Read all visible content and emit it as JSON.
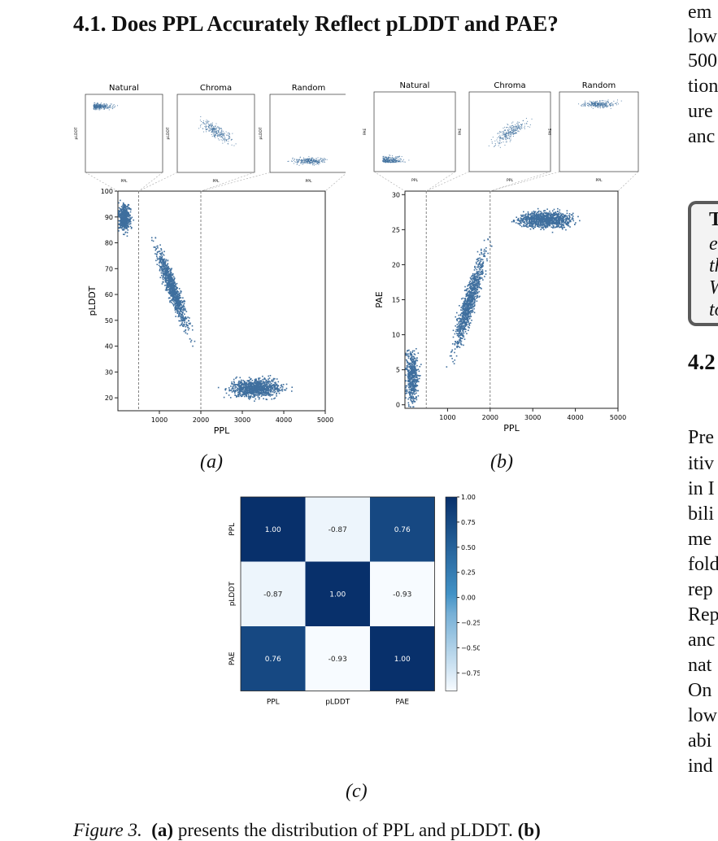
{
  "section_title": "4.1. Does PPL Accurately Reflect pLDDT and PAE?",
  "next_section_fragment": "4.2",
  "right_column_lines": [
    "em",
    "low",
    "500",
    "tion",
    "ure",
    "anc"
  ],
  "right_column_lines_2": [
    "Pre",
    "itiv",
    "in I",
    "bili",
    "me",
    "fold",
    "rep",
    "Rep",
    "anc",
    "nat",
    "On",
    "low",
    "abi",
    "ind"
  ],
  "takeaway_box_lines": [
    "T",
    "e.",
    "th",
    "W",
    "to"
  ],
  "subfigure_labels": {
    "a": "(a)",
    "b": "(b)",
    "c": "(c)"
  },
  "caption": {
    "prefix": "Figure 3.",
    "bold_a": "(a)",
    "text": " presents the distribution of PPL and pLDDT. ",
    "bold_b": "(b)"
  },
  "chart_data": [
    {
      "id": "a",
      "type": "scatter",
      "xlabel": "PPL",
      "ylabel": "pLDDT",
      "xlim": [
        0,
        5000
      ],
      "ylim": [
        15,
        100
      ],
      "xticks": [
        "1000",
        "2000",
        "3000",
        "4000",
        "5000"
      ],
      "yticks": [
        "20",
        "30",
        "40",
        "50",
        "60",
        "70",
        "80",
        "90",
        "100"
      ],
      "vlines": [
        500,
        2000
      ],
      "clusters": [
        {
          "name": "Natural",
          "center": [
            150,
            90
          ],
          "spread": [
            120,
            4
          ]
        },
        {
          "name": "Chroma",
          "center": [
            1300,
            60
          ],
          "spread": [
            300,
            10
          ]
        },
        {
          "name": "Random",
          "center": [
            3300,
            24
          ],
          "spread": [
            500,
            3
          ]
        }
      ],
      "insets": [
        {
          "title": "Natural",
          "xlabel": "PPL",
          "ylabel": "pLDDT"
        },
        {
          "title": "Chroma",
          "xlabel": "PPL",
          "ylabel": "pLDDT"
        },
        {
          "title": "Random",
          "xlabel": "PPL",
          "ylabel": "pLDDT"
        }
      ],
      "color": "#3f6f9e"
    },
    {
      "id": "b",
      "type": "scatter",
      "xlabel": "PPL",
      "ylabel": "PAE",
      "xlim": [
        0,
        5000
      ],
      "ylim": [
        -0.5,
        30.5
      ],
      "xticks": [
        "1000",
        "2000",
        "3000",
        "4000",
        "5000"
      ],
      "yticks": [
        "0",
        "5",
        "10",
        "15",
        "20",
        "25",
        "30"
      ],
      "vlines": [
        500,
        2000
      ],
      "clusters": [
        {
          "name": "Natural",
          "center": [
            150,
            4
          ],
          "spread": [
            120,
            3
          ]
        },
        {
          "name": "Chroma",
          "center": [
            1500,
            14
          ],
          "spread": [
            300,
            7
          ]
        },
        {
          "name": "Random",
          "center": [
            3300,
            26.5
          ],
          "spread": [
            500,
            1
          ]
        }
      ],
      "insets": [
        {
          "title": "Natural",
          "xlabel": "PPL",
          "ylabel": "PAE"
        },
        {
          "title": "Chroma",
          "xlabel": "PPL",
          "ylabel": "PAE"
        },
        {
          "title": "Random",
          "xlabel": "PPL",
          "ylabel": "PAE"
        }
      ],
      "color": "#3f6f9e"
    },
    {
      "id": "c",
      "type": "heatmap",
      "labels": [
        "PPL",
        "pLDDT",
        "PAE"
      ],
      "values": [
        [
          1.0,
          -0.87,
          0.76
        ],
        [
          -0.87,
          1.0,
          -0.93
        ],
        [
          0.76,
          -0.93,
          1.0
        ]
      ],
      "display": [
        [
          "1.00",
          "-0.87",
          "0.76"
        ],
        [
          "-0.87",
          "1.00",
          "-0.93"
        ],
        [
          "0.76",
          "-0.93",
          "1.00"
        ]
      ],
      "colorbar_ticks": [
        "1.00",
        "0.75",
        "0.50",
        "0.25",
        "0.00",
        "−0.25",
        "−0.50",
        "−0.75"
      ],
      "colorbar_values": [
        1.0,
        0.75,
        0.5,
        0.25,
        0.0,
        -0.25,
        -0.5,
        -0.75
      ],
      "vmin": -0.93,
      "vmax": 1.0
    }
  ]
}
